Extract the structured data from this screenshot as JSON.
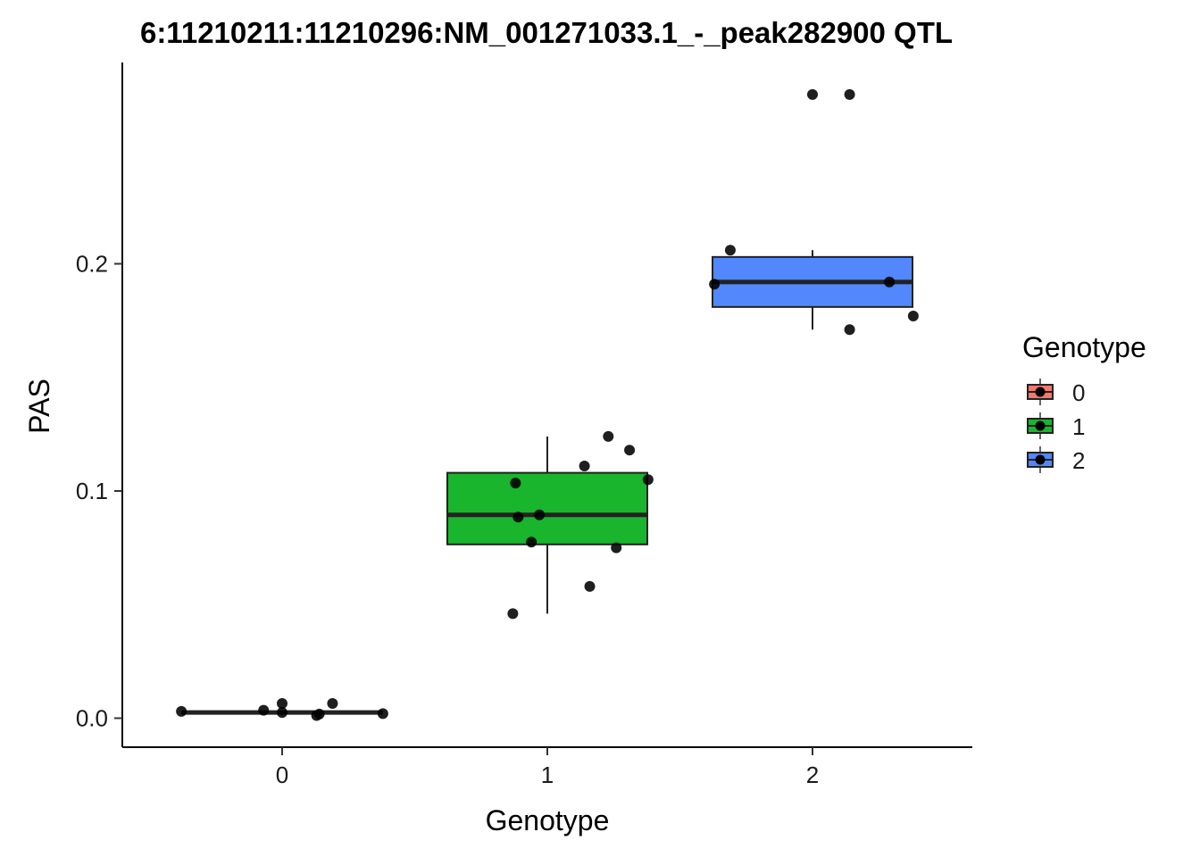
{
  "chart_data": {
    "type": "box",
    "title": "6:11210211:11210296:NM_001271033.1_-_peak282900 QTL",
    "xlabel": "Genotype",
    "ylabel": "PAS",
    "categories": [
      "0",
      "1",
      "2"
    ],
    "ylim": [
      -0.0125,
      0.2885
    ],
    "yticks": [
      "0.0",
      "0.1",
      "0.2"
    ],
    "grid": false,
    "legend": {
      "title": "Genotype",
      "position": "right",
      "entries": [
        "0",
        "1",
        "2"
      ]
    },
    "colors": {
      "0": "#F8766D",
      "1": "#19B52D",
      "2": "#5287FD"
    },
    "boxes": [
      {
        "category": "0",
        "q1": 0.002,
        "median": 0.0025,
        "q3": 0.003,
        "whisker_low": 0.002,
        "whisker_high": 0.003
      },
      {
        "category": "1",
        "q1": 0.0765,
        "median": 0.0895,
        "q3": 0.108,
        "whisker_low": 0.046,
        "whisker_high": 0.124
      },
      {
        "category": "2",
        "q1": 0.181,
        "median": 0.192,
        "q3": 0.203,
        "whisker_low": 0.171,
        "whisker_high": 0.206
      }
    ],
    "points": [
      {
        "category": "0",
        "x": -0.38,
        "y": 0.003
      },
      {
        "category": "0",
        "x": -0.07,
        "y": 0.0035
      },
      {
        "category": "0",
        "x": 0.0,
        "y": 0.0065
      },
      {
        "category": "0",
        "x": 0.0,
        "y": 0.0025
      },
      {
        "category": "0",
        "x": 0.13,
        "y": 0.0012
      },
      {
        "category": "0",
        "x": 0.14,
        "y": 0.0018
      },
      {
        "category": "0",
        "x": 0.19,
        "y": 0.0065
      },
      {
        "category": "0",
        "x": 0.38,
        "y": 0.002
      },
      {
        "category": "1",
        "x": 0.87,
        "y": 0.046
      },
      {
        "category": "1",
        "x": 0.88,
        "y": 0.1035
      },
      {
        "category": "1",
        "x": 0.89,
        "y": 0.0885
      },
      {
        "category": "1",
        "x": 0.94,
        "y": 0.0775
      },
      {
        "category": "1",
        "x": 0.97,
        "y": 0.0895
      },
      {
        "category": "1",
        "x": 1.14,
        "y": 0.111
      },
      {
        "category": "1",
        "x": 1.16,
        "y": 0.058
      },
      {
        "category": "1",
        "x": 1.23,
        "y": 0.124
      },
      {
        "category": "1",
        "x": 1.26,
        "y": 0.075
      },
      {
        "category": "1",
        "x": 1.31,
        "y": 0.118
      },
      {
        "category": "1",
        "x": 1.38,
        "y": 0.105
      },
      {
        "category": "2",
        "x": 1.63,
        "y": 0.191
      },
      {
        "category": "2",
        "x": 1.69,
        "y": 0.206
      },
      {
        "category": "2",
        "x": 2.0,
        "y": 0.2745
      },
      {
        "category": "2",
        "x": 2.14,
        "y": 0.2745
      },
      {
        "category": "2",
        "x": 2.14,
        "y": 0.171
      },
      {
        "category": "2",
        "x": 2.29,
        "y": 0.192
      },
      {
        "category": "2",
        "x": 2.38,
        "y": 0.177
      }
    ]
  }
}
